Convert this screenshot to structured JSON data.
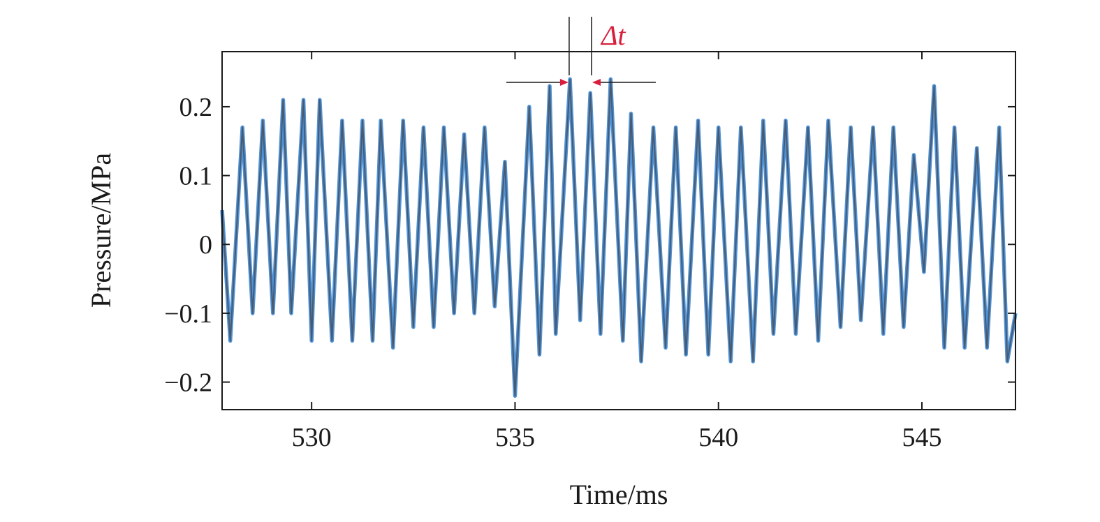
{
  "chart_data": {
    "type": "line",
    "title": "",
    "xlabel": "Time/ms",
    "ylabel": "Pressure/MPa",
    "xlim": [
      527.8,
      547.3
    ],
    "ylim": [
      -0.24,
      0.28
    ],
    "xticks": [
      530,
      535,
      540,
      545
    ],
    "xtick_labels": [
      "530",
      "535",
      "540",
      "545"
    ],
    "yticks": [
      0.2,
      0.1,
      0,
      -0.1,
      -0.2
    ],
    "ytick_labels": [
      "0.2",
      "0.1",
      "0",
      "−0.1",
      "−0.2"
    ],
    "grid": false,
    "legend": "none",
    "colors": {
      "series_main": "#4a5a6e",
      "series_highlight": "#2f7fd0",
      "annotation": "#d81e3c",
      "axes": "#1a1a1a"
    },
    "series": [
      {
        "x": [
          527.8,
          528.0,
          528.3,
          528.55,
          528.8,
          529.05,
          529.3,
          529.5,
          529.8,
          530.0,
          530.2,
          530.5,
          530.75,
          531.0,
          531.25,
          531.5,
          531.7,
          532.0,
          532.25,
          532.5,
          532.75,
          533.0,
          533.25,
          533.5,
          533.75,
          534.0,
          534.25,
          534.5,
          534.75,
          535.0,
          535.35,
          535.6,
          535.85,
          536.0,
          536.35,
          536.6,
          536.85,
          537.1,
          537.35,
          537.65,
          537.85,
          538.1,
          538.4,
          538.7,
          538.95,
          539.2,
          539.5,
          539.75,
          540.0,
          540.3,
          540.55,
          540.85,
          541.1,
          541.35,
          541.65,
          541.9,
          542.2,
          542.45,
          542.7,
          543.0,
          543.25,
          543.5,
          543.8,
          544.05,
          544.3,
          544.55,
          544.8,
          545.05,
          545.3,
          545.55,
          545.8,
          546.05,
          546.35,
          546.6,
          546.9,
          547.1,
          547.3
        ],
        "y": [
          0.05,
          -0.14,
          0.17,
          -0.1,
          0.18,
          -0.1,
          0.21,
          -0.1,
          0.21,
          -0.14,
          0.21,
          -0.14,
          0.18,
          -0.14,
          0.18,
          -0.14,
          0.18,
          -0.15,
          0.18,
          -0.12,
          0.17,
          -0.12,
          0.17,
          -0.1,
          0.16,
          -0.1,
          0.17,
          -0.09,
          0.12,
          -0.22,
          0.2,
          -0.16,
          0.23,
          -0.13,
          0.24,
          -0.11,
          0.22,
          -0.13,
          0.24,
          -0.14,
          0.19,
          -0.17,
          0.17,
          -0.15,
          0.17,
          -0.16,
          0.18,
          -0.16,
          0.17,
          -0.17,
          0.17,
          -0.17,
          0.18,
          -0.13,
          0.18,
          -0.13,
          0.17,
          -0.14,
          0.18,
          -0.12,
          0.17,
          -0.11,
          0.17,
          -0.13,
          0.17,
          -0.12,
          0.13,
          -0.04,
          0.23,
          -0.15,
          0.17,
          -0.15,
          0.14,
          -0.15,
          0.17,
          -0.17,
          -0.1
        ]
      }
    ],
    "annotations": [
      {
        "text": "Δt",
        "type": "interval",
        "x_start": 536.33,
        "x_end": 536.88
      }
    ]
  }
}
